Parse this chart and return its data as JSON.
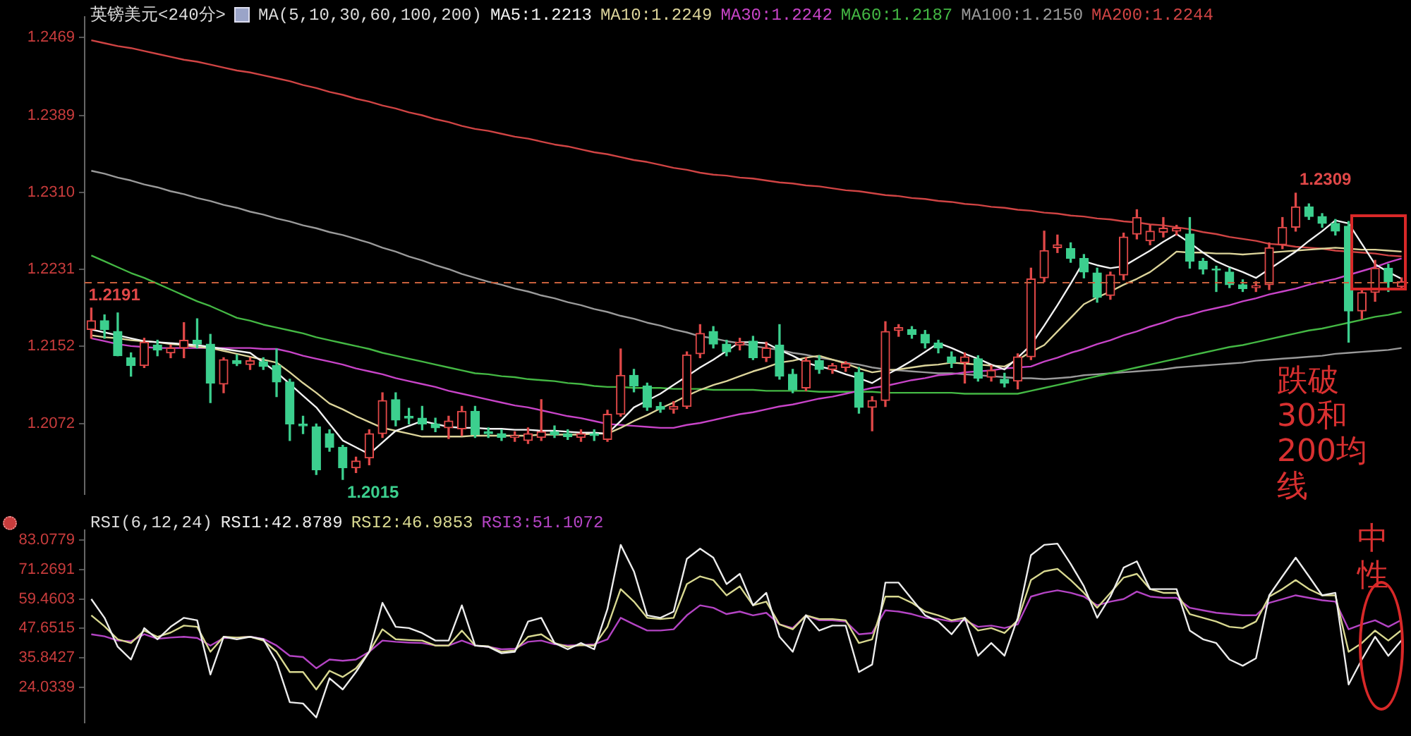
{
  "chart_data": [
    {
      "type": "candlestick",
      "title": "英镑美元<240分>",
      "legend_title": "MA(5,10,30,60,100,200)",
      "legend": "top",
      "tick_labels": "y",
      "categories": [
        null,
        null,
        null,
        null,
        null,
        null,
        null,
        null,
        null,
        null,
        null,
        null,
        null,
        null,
        null,
        null,
        null,
        null,
        null,
        null,
        null,
        null,
        null,
        null,
        null,
        null,
        null,
        null,
        null,
        null,
        null,
        null,
        null,
        null,
        null,
        null,
        null,
        null,
        null,
        null,
        null,
        null,
        null,
        null,
        null,
        null,
        null,
        null,
        null,
        null,
        null,
        null,
        null,
        null,
        null,
        null,
        null,
        null,
        null,
        null,
        null,
        null,
        null,
        null,
        null,
        null,
        null,
        null,
        null,
        null,
        null,
        null,
        null,
        null,
        null,
        null,
        null,
        null,
        null,
        null,
        null,
        null,
        null,
        null,
        null,
        null,
        null,
        null,
        null,
        null,
        null,
        null,
        null,
        null,
        null,
        null,
        null,
        null,
        null,
        null
      ],
      "ohlc": [
        [
          1.2169,
          1.2191,
          1.216,
          1.2178
        ],
        [
          1.2178,
          1.2184,
          1.216,
          1.2169
        ],
        [
          1.2167,
          1.2186,
          1.2142,
          1.2142
        ],
        [
          1.214,
          1.2145,
          1.2121,
          1.2132
        ],
        [
          1.2132,
          1.216,
          1.213,
          1.2156
        ],
        [
          1.2153,
          1.2158,
          1.2142,
          1.2148
        ],
        [
          1.2145,
          1.2153,
          1.214,
          1.215
        ],
        [
          1.215,
          1.2176,
          1.214,
          1.2158
        ],
        [
          1.2158,
          1.218,
          1.215,
          1.2154
        ],
        [
          1.2154,
          1.2164,
          1.2094,
          1.2114
        ],
        [
          1.2113,
          1.214,
          1.2104,
          1.2138
        ],
        [
          1.2137,
          1.2143,
          1.2132,
          1.2134
        ],
        [
          1.2133,
          1.214,
          1.2128,
          1.2137
        ],
        [
          1.2136,
          1.214,
          1.2128,
          1.2131
        ],
        [
          1.2132,
          1.2149,
          1.21,
          1.2115
        ],
        [
          1.2115,
          1.2118,
          1.2055,
          1.2072
        ],
        [
          1.2072,
          1.208,
          1.2062,
          1.207
        ],
        [
          1.2069,
          1.2072,
          1.202,
          1.2025
        ],
        [
          1.2062,
          1.2066,
          1.2044,
          1.2048
        ],
        [
          1.2048,
          1.205,
          1.2015,
          1.2027
        ],
        [
          1.2027,
          1.2038,
          1.2022,
          1.2034
        ],
        [
          1.2037,
          1.2066,
          1.203,
          1.2062
        ],
        [
          1.2062,
          1.2104,
          1.2058,
          1.2096
        ],
        [
          1.2097,
          1.2104,
          1.207,
          1.2076
        ],
        [
          1.208,
          1.2088,
          1.2072,
          1.2078
        ],
        [
          1.2078,
          1.209,
          1.2066,
          1.2072
        ],
        [
          1.2072,
          1.2078,
          1.2064,
          1.2068
        ],
        [
          1.2068,
          1.208,
          1.2057,
          1.2075
        ],
        [
          1.2067,
          1.209,
          1.206,
          1.2085
        ],
        [
          1.2085,
          1.209,
          1.2058,
          1.2061
        ],
        [
          1.2064,
          1.2068,
          1.2058,
          1.2062
        ],
        [
          1.2062,
          1.2066,
          1.2055,
          1.2058
        ],
        [
          1.2058,
          1.2064,
          1.2054,
          1.206
        ],
        [
          1.2055,
          1.2068,
          1.2052,
          1.2062
        ],
        [
          1.2058,
          1.2097,
          1.2055,
          1.2064
        ],
        [
          1.2064,
          1.207,
          1.2058,
          1.2061
        ],
        [
          1.2062,
          1.2066,
          1.2056,
          1.2059
        ],
        [
          1.2058,
          1.2066,
          1.2054,
          1.2062
        ],
        [
          1.2062,
          1.2066,
          1.2055,
          1.206
        ],
        [
          1.2056,
          1.2086,
          1.2054,
          1.2082
        ],
        [
          1.2082,
          1.2149,
          1.208,
          1.2122
        ],
        [
          1.2122,
          1.2128,
          1.2105,
          1.2111
        ],
        [
          1.2111,
          1.2114,
          1.2086,
          1.2089
        ],
        [
          1.209,
          1.2094,
          1.2084,
          1.2087
        ],
        [
          1.2087,
          1.2095,
          1.2083,
          1.209
        ],
        [
          1.209,
          1.2146,
          1.2088,
          1.2143
        ],
        [
          1.2144,
          1.2174,
          1.214,
          1.2165
        ],
        [
          1.2167,
          1.2172,
          1.215,
          1.2154
        ],
        [
          1.2154,
          1.2158,
          1.2142,
          1.2146
        ],
        [
          1.2153,
          1.216,
          1.2148,
          1.2156
        ],
        [
          1.2157,
          1.2162,
          1.2138,
          1.214
        ],
        [
          1.214,
          1.2156,
          1.2136,
          1.215
        ],
        [
          1.2153,
          1.2174,
          1.2118,
          1.2121
        ],
        [
          1.2123,
          1.2128,
          1.2104,
          1.2107
        ],
        [
          1.2109,
          1.214,
          1.2106,
          1.2137
        ],
        [
          1.2137,
          1.2142,
          1.2124,
          1.2128
        ],
        [
          1.2128,
          1.2134,
          1.2124,
          1.2132
        ],
        [
          1.213,
          1.2136,
          1.2126,
          1.2134
        ],
        [
          1.2125,
          1.213,
          1.2083,
          1.2089
        ],
        [
          1.2089,
          1.21,
          1.2065,
          1.2096
        ],
        [
          1.2096,
          1.2177,
          1.209,
          1.2167
        ],
        [
          1.2168,
          1.2174,
          1.2162,
          1.2171
        ],
        [
          1.2169,
          1.2172,
          1.216,
          1.2164
        ],
        [
          1.2164,
          1.2168,
          1.215,
          1.2155
        ],
        [
          1.2155,
          1.2158,
          1.2145,
          1.215
        ],
        [
          1.2141,
          1.2146,
          1.213,
          1.2135
        ],
        [
          1.2135,
          1.2145,
          1.2114,
          1.2141
        ],
        [
          1.2139,
          1.2142,
          1.2116,
          1.2119
        ],
        [
          1.212,
          1.2132,
          1.2116,
          1.2127
        ],
        [
          1.2118,
          1.2124,
          1.211,
          1.2114
        ],
        [
          1.2116,
          1.2144,
          1.2108,
          1.2141
        ],
        [
          1.2141,
          1.2232,
          1.2138,
          1.2221
        ],
        [
          1.2222,
          1.227,
          1.2218,
          1.225
        ],
        [
          1.2253,
          1.2266,
          1.2248,
          1.2256
        ],
        [
          1.2252,
          1.2258,
          1.2238,
          1.2242
        ],
        [
          1.2242,
          1.2246,
          1.2222,
          1.2228
        ],
        [
          1.2227,
          1.2232,
          1.2197,
          1.2202
        ],
        [
          1.2204,
          1.2228,
          1.22,
          1.2225
        ],
        [
          1.2225,
          1.2268,
          1.222,
          1.2264
        ],
        [
          1.2267,
          1.2292,
          1.2262,
          1.2284
        ],
        [
          1.226,
          1.2276,
          1.2256,
          1.227
        ],
        [
          1.2269,
          1.2284,
          1.2264,
          1.2273
        ],
        [
          1.227,
          1.2276,
          1.2266,
          1.2273
        ],
        [
          1.2267,
          1.2284,
          1.2232,
          1.2239
        ],
        [
          1.2239,
          1.2242,
          1.2226,
          1.2231
        ],
        [
          1.2231,
          1.2234,
          1.2208,
          1.223
        ],
        [
          1.2228,
          1.2232,
          1.2212,
          1.2215
        ],
        [
          1.2215,
          1.222,
          1.2208,
          1.2211
        ],
        [
          1.2212,
          1.2218,
          1.2208,
          1.2214
        ],
        [
          1.2215,
          1.2258,
          1.221,
          1.2253
        ],
        [
          1.2256,
          1.2284,
          1.2252,
          1.2274
        ],
        [
          1.2274,
          1.2309,
          1.227,
          1.2295
        ],
        [
          1.2295,
          1.2298,
          1.2282,
          1.2285
        ],
        [
          1.2285,
          1.2288,
          1.2274,
          1.2278
        ],
        [
          1.2278,
          1.2282,
          1.2266,
          1.227
        ],
        [
          1.2275,
          1.228,
          1.2156,
          1.2188
        ],
        [
          1.2188,
          1.221,
          1.218,
          1.2207
        ],
        [
          1.2207,
          1.224,
          1.2198,
          1.2232
        ],
        [
          1.2232,
          1.2236,
          1.2208,
          1.2218
        ],
        [
          1.2213,
          1.2222,
          1.221,
          1.2218
        ]
      ],
      "colors": [
        "#e04848",
        "#3ccf8e",
        "#3ccf8e",
        "#3ccf8e",
        "#e04848",
        "#3ccf8e",
        "#e04848",
        "#e04848",
        "#3ccf8e",
        "#3ccf8e",
        "#e04848",
        "#3ccf8e",
        "#e04848",
        "#3ccf8e",
        "#3ccf8e",
        "#3ccf8e",
        "#3ccf8e",
        "#3ccf8e",
        "#3ccf8e",
        "#3ccf8e",
        "#e04848",
        "#e04848",
        "#e04848",
        "#3ccf8e",
        "#3ccf8e",
        "#3ccf8e",
        "#3ccf8e",
        "#e04848",
        "#e04848",
        "#3ccf8e",
        "#3ccf8e",
        "#3ccf8e",
        "#e04848",
        "#e04848",
        "#e04848",
        "#3ccf8e",
        "#3ccf8e",
        "#e04848",
        "#3ccf8e",
        "#e04848",
        "#e04848",
        "#3ccf8e",
        "#3ccf8e",
        "#3ccf8e",
        "#e04848",
        "#e04848",
        "#e04848",
        "#3ccf8e",
        "#3ccf8e",
        "#e04848",
        "#3ccf8e",
        "#e04848",
        "#3ccf8e",
        "#3ccf8e",
        "#e04848",
        "#3ccf8e",
        "#e04848",
        "#e04848",
        "#3ccf8e",
        "#e04848",
        "#e04848",
        "#e04848",
        "#3ccf8e",
        "#3ccf8e",
        "#3ccf8e",
        "#3ccf8e",
        "#e04848",
        "#3ccf8e",
        "#e04848",
        "#3ccf8e",
        "#e04848",
        "#e04848",
        "#e04848",
        "#e04848",
        "#3ccf8e",
        "#3ccf8e",
        "#3ccf8e",
        "#e04848",
        "#e04848",
        "#e04848",
        "#e04848",
        "#e04848",
        "#e04848",
        "#3ccf8e",
        "#3ccf8e",
        "#3ccf8e",
        "#3ccf8e",
        "#3ccf8e",
        "#e04848",
        "#e04848",
        "#e04848",
        "#e04848",
        "#3ccf8e",
        "#3ccf8e",
        "#3ccf8e",
        "#3ccf8e",
        "#e04848",
        "#e04848",
        "#3ccf8e",
        "#e04848"
      ],
      "series": [
        {
          "type": "line",
          "name": "MA5:1.2213",
          "color": "#f2f2f2",
          "values": [
            1.2169,
            1.2166,
            1.2163,
            1.216,
            1.2157,
            1.2156,
            1.2155,
            1.2154,
            1.2153,
            1.2151,
            1.2149,
            1.2147,
            1.2145,
            1.2135,
            1.2125,
            1.2113,
            1.2101,
            1.2089,
            1.2072,
            1.2055,
            1.2048,
            1.2041,
            1.2053,
            1.2065,
            1.207,
            1.2075,
            1.2072,
            1.2069,
            1.2068,
            1.2068,
            1.2067,
            1.2067,
            1.2066,
            1.2066,
            1.2065,
            1.2065,
            1.2064,
            1.2063,
            1.2063,
            1.2062,
            1.2075,
            1.2089,
            1.2096,
            1.2103,
            1.2112,
            1.2121,
            1.213,
            1.2138,
            1.2147,
            1.2156,
            1.2156,
            1.2155,
            1.2148,
            1.2142,
            1.2135,
            1.2131,
            1.2128,
            1.2123,
            1.2119,
            1.2114,
            1.2122,
            1.2129,
            1.2137,
            1.2146,
            1.2155,
            1.215,
            1.2144,
            1.2139,
            1.2133,
            1.2128,
            1.214,
            1.2153,
            1.2173,
            1.2194,
            1.2216,
            1.2239,
            1.2235,
            1.2232,
            1.2234,
            1.2242,
            1.225,
            1.2259,
            1.2267,
            1.2258,
            1.2248,
            1.2239,
            1.2233,
            1.2228,
            1.2222,
            1.2231,
            1.224,
            1.2249,
            1.226,
            1.227,
            1.2281,
            1.2278,
            1.2257,
            1.2236,
            1.2228,
            1.2221
          ]
        },
        {
          "type": "line",
          "name": "MA10:1.2249",
          "color": "#dcd49a",
          "values": [
            1.2163,
            1.2161,
            1.216,
            1.2158,
            1.2157,
            1.2156,
            1.2154,
            1.2153,
            1.2151,
            1.215,
            1.2147,
            1.2144,
            1.2141,
            1.2138,
            1.2135,
            1.2125,
            1.2114,
            1.2104,
            1.2093,
            1.2087,
            1.208,
            1.2074,
            1.2068,
            1.2065,
            1.2062,
            1.2059,
            1.2059,
            1.2059,
            1.2059,
            1.206,
            1.206,
            1.206,
            1.206,
            1.206,
            1.2061,
            1.2061,
            1.2061,
            1.2061,
            1.2062,
            1.2062,
            1.2068,
            1.2075,
            1.2081,
            1.2088,
            1.2094,
            1.2101,
            1.2107,
            1.2112,
            1.2116,
            1.2121,
            1.2126,
            1.213,
            1.2135,
            1.2137,
            1.214,
            1.2142,
            1.2138,
            1.2134,
            1.2129,
            1.2125,
            1.2127,
            1.2128,
            1.213,
            1.2132,
            1.2133,
            1.2135,
            1.2134,
            1.2133,
            1.2132,
            1.2131,
            1.2138,
            1.2146,
            1.2153,
            1.2167,
            1.2181,
            1.2195,
            1.2202,
            1.2208,
            1.2215,
            1.2221,
            1.2228,
            1.2238,
            1.2249,
            1.2248,
            1.2248,
            1.2247,
            1.2247,
            1.2246,
            1.2247,
            1.2248,
            1.2249,
            1.225,
            1.2251,
            1.2252,
            1.2253,
            1.2252,
            1.2251,
            1.2251,
            1.225,
            1.2249
          ]
        },
        {
          "type": "line",
          "name": "MA30:1.2242",
          "color": "#c844c8",
          "values": [
            1.216,
            1.2157,
            1.2154,
            1.2152,
            1.2151,
            1.215,
            1.215,
            1.215,
            1.215,
            null,
            1.215,
            1.215,
            1.215,
            1.2149,
            1.2149,
            1.2146,
            1.2142,
            1.2139,
            1.2136,
            1.2133,
            1.2129,
            1.2126,
            1.2123,
            1.2119,
            1.2116,
            1.2113,
            1.211,
            1.2106,
            1.2103,
            1.21,
            1.2097,
            1.2094,
            1.2091,
            1.2089,
            1.2086,
            1.2083,
            1.208,
            1.2078,
            1.2075,
            1.2072,
            1.2071,
            1.207,
            1.2069,
            1.2068,
            1.2068,
            1.2071,
            1.2073,
            1.2076,
            1.2079,
            1.2082,
            1.2084,
            1.2087,
            1.209,
            1.2092,
            1.2095,
            1.2098,
            1.21,
            1.2103,
            1.2106,
            1.2109,
            1.2111,
            1.2114,
            1.2117,
            1.2119,
            1.2122,
            1.2123,
            1.2125,
            1.2126,
            1.2127,
            1.2129,
            1.213,
            1.2131,
            1.2136,
            1.214,
            1.2145,
            1.2149,
            1.2154,
            1.2158,
            1.2163,
            1.2167,
            1.2172,
            1.2176,
            1.2181,
            1.2184,
            1.2188,
            1.2191,
            1.2194,
            1.2198,
            1.2201,
            1.2205,
            1.2208,
            1.2211,
            1.2215,
            1.2218,
            1.2221,
            1.2225,
            1.2229,
            1.2233,
            1.2238,
            1.2242
          ]
        },
        {
          "type": "line",
          "name": "MA60:1.2187",
          "color": "#44b844",
          "values": [
            1.2245,
            1.2239,
            1.2233,
            1.2227,
            1.2222,
            1.2216,
            1.221,
            1.2204,
            1.2198,
            1.2193,
            1.2187,
            1.2181,
            1.2178,
            1.2174,
            1.2171,
            1.2168,
            1.2165,
            1.2161,
            1.2158,
            1.2155,
            1.2152,
            1.2149,
            1.2145,
            1.2142,
            1.2139,
            1.2136,
            1.2133,
            1.213,
            1.2127,
            1.2124,
            1.2123,
            1.2121,
            1.212,
            1.2118,
            1.2117,
            1.2116,
            1.2114,
            1.2113,
            1.2111,
            1.211,
            1.211,
            1.2109,
            1.2109,
            1.2109,
            1.2108,
            1.2108,
            1.2108,
            1.2107,
            1.2107,
            1.2107,
            1.2107,
            1.2106,
            1.2106,
            1.2106,
            1.2106,
            1.2105,
            1.2105,
            1.2105,
            1.2105,
            1.2105,
            1.2104,
            1.2104,
            1.2104,
            1.2104,
            1.2104,
            1.2104,
            1.2103,
            1.2103,
            1.2103,
            1.2103,
            1.2103,
            1.2106,
            1.2109,
            1.2112,
            1.2115,
            1.2118,
            1.2121,
            1.2124,
            1.2127,
            1.213,
            1.2133,
            1.2136,
            1.2139,
            1.2142,
            1.2145,
            1.2148,
            1.2151,
            1.2153,
            1.2156,
            1.2159,
            1.2162,
            1.2165,
            1.2168,
            1.217,
            1.2173,
            1.2176,
            1.2179,
            1.2182,
            1.2184,
            1.2187
          ]
        },
        {
          "type": "line",
          "name": "MA100:1.2150",
          "color": "#9a9a9a",
          "values": [
            1.2332,
            1.2329,
            1.2325,
            1.2322,
            1.2318,
            1.2315,
            1.2311,
            1.2308,
            1.2304,
            1.2301,
            1.2297,
            1.2294,
            1.229,
            1.2287,
            1.2283,
            1.228,
            1.2276,
            1.2273,
            1.2269,
            1.2266,
            1.2262,
            1.2258,
            1.2253,
            1.2249,
            1.2244,
            1.224,
            1.2235,
            1.2231,
            1.2226,
            1.2222,
            1.2218,
            1.2215,
            1.2211,
            1.2208,
            1.2204,
            1.2201,
            1.2197,
            1.2194,
            1.219,
            1.2187,
            1.2183,
            1.218,
            1.2176,
            1.2173,
            1.2169,
            1.2166,
            1.2162,
            1.216,
            1.2157,
            1.2155,
            1.2152,
            1.215,
            1.2148,
            1.2145,
            1.2143,
            1.214,
            1.2138,
            1.2135,
            1.2133,
            1.213,
            1.2128,
            1.2127,
            1.2126,
            1.2125,
            1.2124,
            1.2124,
            1.2123,
            1.2122,
            1.2121,
            1.212,
            1.2119,
            1.2119,
            1.2118,
            1.2119,
            1.212,
            1.2122,
            1.2123,
            1.2124,
            1.2125,
            1.2126,
            1.2127,
            1.2128,
            1.213,
            1.2131,
            1.2132,
            1.2133,
            1.2134,
            1.2135,
            1.2137,
            1.2138,
            1.2139,
            1.214,
            1.2141,
            1.2142,
            1.2144,
            1.2145,
            1.2146,
            1.2147,
            1.2148,
            1.215
          ]
        },
        {
          "type": "line",
          "name": "MA200:1.2244",
          "color": "#d04444",
          "values": [
            1.2466,
            1.2463,
            1.246,
            1.2458,
            1.2455,
            1.2452,
            1.2449,
            1.2446,
            1.2444,
            1.2441,
            1.2438,
            1.2435,
            1.2433,
            1.243,
            1.2427,
            1.2424,
            1.242,
            1.2417,
            1.2413,
            1.241,
            1.2406,
            1.2403,
            1.2399,
            1.2396,
            1.2392,
            1.2389,
            1.2385,
            1.2382,
            1.2378,
            1.2375,
            1.2373,
            1.237,
            1.2367,
            1.2365,
            1.2362,
            1.2359,
            1.2357,
            1.2354,
            1.2351,
            1.2349,
            1.2346,
            1.2343,
            1.2341,
            1.2338,
            1.2335,
            1.2333,
            1.233,
            1.2328,
            1.2327,
            1.2325,
            1.2324,
            1.2322,
            1.232,
            1.2319,
            1.2317,
            1.2316,
            1.2314,
            1.2312,
            1.2311,
            1.2309,
            1.2307,
            1.2306,
            1.2304,
            1.2303,
            1.2301,
            1.23,
            1.2298,
            1.2297,
            1.2295,
            1.2294,
            1.2292,
            1.2291,
            1.2289,
            1.2288,
            1.2286,
            1.2285,
            1.2283,
            1.2282,
            1.228,
            1.2279,
            1.2277,
            1.2276,
            1.2274,
            1.2272,
            1.2269,
            1.2267,
            1.2264,
            1.2262,
            1.226,
            1.2257,
            1.2256,
            1.2254,
            1.2253,
            1.2252,
            1.225,
            1.2249,
            1.2248,
            1.2247,
            1.2245,
            1.2244
          ]
        }
      ],
      "ylim": [
        1.2,
        1.249
      ],
      "yticks": [
        1.2469,
        1.2389,
        {
          "value": 1.231,
          "label": "1.2310"
        },
        1.2231,
        1.2152,
        1.2072
      ],
      "ref_lines": [
        {
          "axis": "y",
          "value": 1.2217,
          "color": "#c8603c",
          "line_style": "dashed"
        }
      ],
      "annotations": [
        {
          "text": "1.2191",
          "y": 1.2191
        },
        "1.2015",
        "1.2309",
        "跌破30和200均线"
      ]
    },
    {
      "type": "line",
      "legend_title": "RSI(6,12,24)",
      "legend": "top left",
      "tick_labels": "y",
      "categories": [
        null,
        null,
        null,
        null,
        null,
        null,
        null,
        null,
        null,
        null,
        null,
        null,
        null,
        null,
        null,
        null,
        null,
        null,
        null,
        null,
        null,
        null,
        null,
        null,
        null,
        null,
        null,
        null,
        null,
        null,
        null,
        null,
        null,
        null,
        null,
        null,
        null,
        null,
        null,
        null,
        null,
        null,
        null,
        null,
        null,
        null,
        null,
        null,
        null,
        null,
        null,
        null,
        null,
        null,
        null,
        null,
        null,
        null,
        null,
        null,
        null,
        null,
        null,
        null,
        null,
        null,
        null,
        null,
        null,
        null,
        null,
        null,
        null,
        null,
        null,
        null,
        null,
        null,
        null,
        null,
        null,
        null,
        null,
        null,
        null,
        null,
        null,
        null,
        null,
        null,
        null,
        null,
        null,
        null,
        null,
        null,
        null,
        null,
        null,
        null
      ],
      "series": [
        {
          "name": "RSI1:42.8789",
          "color": "#ececec",
          "values": [
            59.4,
            51.9,
            40.3,
            35.2,
            47.8,
            43.3,
            48.3,
            51.9,
            50.9,
            29.2,
            44.3,
            43.3,
            44.3,
            43.3,
            34.2,
            18.1,
            17.6,
            12.0,
            27.7,
            23.2,
            30.2,
            38.3,
            57.9,
            48.3,
            47.8,
            45.8,
            42.8,
            42.8,
            56.9,
            40.8,
            40.3,
            37.7,
            38.3,
            50.4,
            51.9,
            41.8,
            39.3,
            41.8,
            39.3,
            55.4,
            81.1,
            70.5,
            52.9,
            51.9,
            54.4,
            75.5,
            79.6,
            76.0,
            65.4,
            69.5,
            56.9,
            61.9,
            44.3,
            38.3,
            52.9,
            46.8,
            48.8,
            48.8,
            30.2,
            33.2,
            66.0,
            66.0,
            59.4,
            52.9,
            50.4,
            45.3,
            51.9,
            36.7,
            41.8,
            36.7,
            51.9,
            77.0,
            81.1,
            81.6,
            73.5,
            64.5,
            51.9,
            60.4,
            72.0,
            74.5,
            63.4,
            63.4,
            63.4,
            46.8,
            43.3,
            41.8,
            35.2,
            32.7,
            35.7,
            60.9,
            68.5,
            76.0,
            68.5,
            60.9,
            61.9,
            25.2,
            35.2,
            44.3,
            36.7,
            42.9
          ]
        },
        {
          "name": "RSI2:46.9853",
          "color": "#d8d890",
          "values": [
            52.9,
            48.5,
            43.3,
            41.8,
            46.8,
            44.3,
            46.0,
            48.8,
            48.3,
            38.3,
            44.3,
            44.0,
            44.3,
            42.8,
            38.3,
            30.2,
            30.2,
            23.2,
            30.7,
            28.2,
            31.7,
            38.3,
            47.3,
            43.3,
            43.0,
            42.8,
            40.8,
            40.8,
            46.8,
            40.8,
            40.5,
            38.3,
            38.8,
            44.3,
            45.3,
            41.8,
            40.3,
            41.0,
            40.8,
            48.3,
            63.4,
            58.4,
            51.9,
            51.4,
            51.9,
            65.4,
            68.5,
            67.0,
            60.9,
            64.5,
            56.9,
            58.4,
            49.3,
            47.3,
            52.9,
            51.4,
            51.4,
            50.9,
            41.8,
            43.3,
            60.4,
            60.4,
            57.9,
            54.4,
            52.9,
            50.9,
            51.9,
            46.8,
            47.8,
            45.8,
            50.9,
            67.0,
            70.5,
            71.5,
            67.0,
            61.9,
            55.9,
            61.9,
            68.0,
            69.5,
            63.4,
            61.9,
            61.9,
            53.4,
            51.9,
            50.4,
            48.3,
            47.8,
            50.4,
            60.4,
            63.4,
            67.0,
            63.4,
            60.9,
            60.9,
            38.3,
            41.8,
            46.8,
            42.8,
            47.0
          ]
        },
        {
          "name": "RSI3:51.1072",
          "color": "#b444c4",
          "values": [
            45.3,
            44.5,
            42.8,
            42.5,
            45.3,
            43.5,
            44.0,
            44.3,
            43.8,
            40.8,
            43.8,
            44.0,
            44.3,
            43.5,
            40.8,
            36.7,
            36.2,
            31.7,
            35.2,
            34.7,
            35.2,
            38.3,
            42.8,
            42.3,
            42.0,
            41.8,
            40.8,
            40.8,
            42.8,
            40.8,
            40.3,
            39.3,
            39.5,
            42.3,
            42.8,
            41.3,
            40.8,
            41.0,
            41.3,
            43.3,
            51.9,
            49.3,
            46.8,
            46.8,
            47.3,
            52.9,
            56.9,
            55.9,
            53.4,
            54.4,
            52.9,
            53.9,
            49.3,
            47.8,
            52.9,
            50.9,
            50.9,
            50.4,
            45.3,
            45.8,
            54.9,
            54.4,
            53.4,
            51.9,
            51.4,
            50.4,
            50.9,
            48.3,
            48.8,
            47.8,
            49.3,
            60.4,
            61.9,
            62.9,
            61.9,
            60.4,
            56.9,
            58.4,
            59.4,
            62.4,
            60.4,
            59.9,
            59.9,
            55.9,
            54.9,
            53.9,
            53.4,
            52.9,
            52.9,
            57.9,
            59.4,
            60.9,
            59.9,
            58.9,
            58.4,
            47.3,
            49.3,
            50.9,
            48.3,
            51.1
          ]
        }
      ],
      "ylim": [
        10,
        87
      ],
      "yticks": [
        83.0779,
        71.2691,
        59.4603,
        47.6515,
        35.8427,
        24.0339
      ],
      "annotations": [
        "中性"
      ]
    }
  ]
}
